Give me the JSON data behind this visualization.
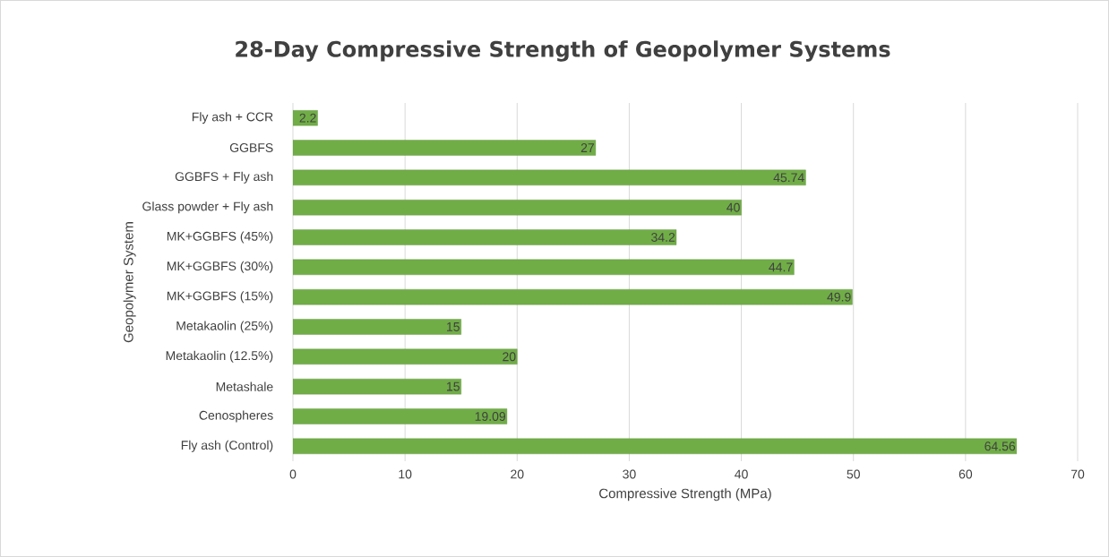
{
  "chart_data": {
    "type": "bar",
    "orientation": "horizontal",
    "title": "28-Day Compressive Strength of Geopolymer Systems",
    "xlabel": "Compressive Strength (MPa)",
    "ylabel": "Geopolymer System",
    "categories": [
      "Fly ash + CCR",
      "GGBFS",
      "GGBFS + Fly ash",
      "Glass powder + Fly ash",
      "MK+GGBFS (45%)",
      "MK+GGBFS (30%)",
      "MK+GGBFS (15%)",
      "Metakaolin (25%)",
      "Metakaolin (12.5%)",
      "Metashale",
      "Cenospheres",
      "Fly ash (Control)"
    ],
    "values": [
      2.2,
      27,
      45.74,
      40,
      34.2,
      44.7,
      49.9,
      15,
      20,
      15,
      19.09,
      64.56
    ],
    "color": "#70ad47",
    "xlim": [
      0,
      70
    ],
    "xticks": [
      0,
      10,
      20,
      30,
      40,
      50,
      60,
      70
    ],
    "grid": "x",
    "data_labels": true
  }
}
